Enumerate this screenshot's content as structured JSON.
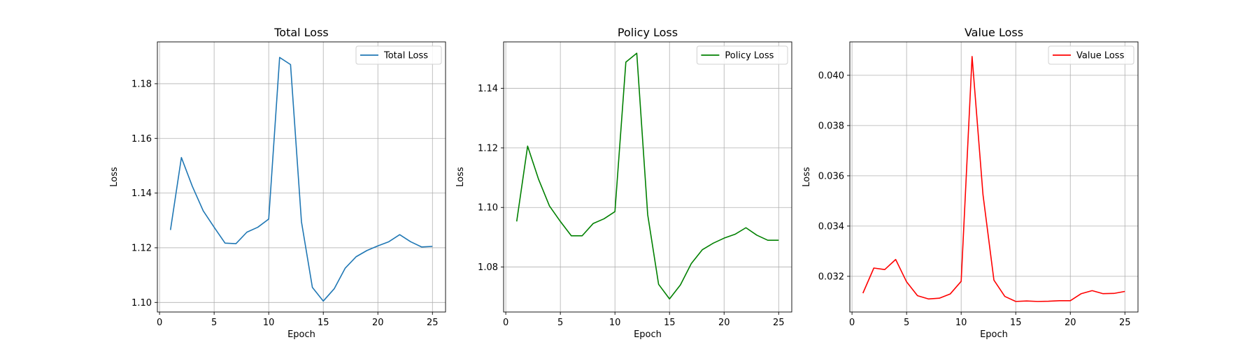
{
  "chart_data": [
    {
      "type": "line",
      "title": "Total Loss",
      "xlabel": "Epoch",
      "ylabel": "Loss",
      "xlim": [
        -0.2,
        26.2
      ],
      "ylim": [
        1.0965,
        1.1953
      ],
      "xticks": [
        0,
        5,
        10,
        15,
        20,
        25
      ],
      "yticks": [
        1.1,
        1.12,
        1.14,
        1.16,
        1.18
      ],
      "ytick_labels": [
        "1.10",
        "1.12",
        "1.14",
        "1.16",
        "1.18"
      ],
      "grid": true,
      "legend": "upper right",
      "series": [
        {
          "name": "Total Loss",
          "color": "#1f77b4",
          "x": [
            1,
            2,
            3,
            4,
            5,
            6,
            7,
            8,
            9,
            10,
            11,
            12,
            13,
            14,
            15,
            16,
            17,
            18,
            19,
            20,
            21,
            22,
            23,
            24,
            25
          ],
          "y": [
            1.1265,
            1.153,
            1.1425,
            1.1335,
            1.1275,
            1.1217,
            1.1215,
            1.1257,
            1.1275,
            1.1305,
            1.1896,
            1.187,
            1.1295,
            1.1055,
            1.1005,
            1.105,
            1.1125,
            1.1167,
            1.119,
            1.1207,
            1.1222,
            1.1248,
            1.1222,
            1.1203,
            1.1205
          ]
        }
      ]
    },
    {
      "type": "line",
      "title": "Policy Loss",
      "xlabel": "Epoch",
      "ylabel": "Loss",
      "xlim": [
        -0.2,
        26.2
      ],
      "ylim": [
        1.0649,
        1.1556
      ],
      "xticks": [
        0,
        5,
        10,
        15,
        20,
        25
      ],
      "yticks": [
        1.08,
        1.1,
        1.12,
        1.14
      ],
      "ytick_labels": [
        "1.08",
        "1.10",
        "1.12",
        "1.14"
      ],
      "grid": true,
      "legend": "upper right",
      "series": [
        {
          "name": "Policy Loss",
          "color": "#008000",
          "x": [
            1,
            2,
            3,
            4,
            5,
            6,
            7,
            8,
            9,
            10,
            11,
            12,
            13,
            14,
            15,
            16,
            17,
            18,
            19,
            20,
            21,
            22,
            23,
            24,
            25
          ],
          "y": [
            1.0953,
            1.1206,
            1.1095,
            1.1005,
            1.0953,
            1.0905,
            1.0905,
            1.0946,
            1.0962,
            1.0986,
            1.1488,
            1.1518,
            1.0976,
            1.0742,
            1.0693,
            1.074,
            1.0812,
            1.0858,
            1.088,
            1.0897,
            1.091,
            1.0932,
            1.0907,
            1.089,
            1.089
          ]
        }
      ]
    },
    {
      "type": "line",
      "title": "Value Loss",
      "xlabel": "Epoch",
      "ylabel": "Loss",
      "xlim": [
        -0.2,
        26.2
      ],
      "ylim": [
        0.03058,
        0.04133
      ],
      "xticks": [
        0,
        5,
        10,
        15,
        20,
        25
      ],
      "yticks": [
        0.032,
        0.034,
        0.036,
        0.038,
        0.04
      ],
      "ytick_labels": [
        "0.032",
        "0.034",
        "0.036",
        "0.038",
        "0.040"
      ],
      "grid": true,
      "legend": "upper right",
      "series": [
        {
          "name": "Value Loss",
          "color": "#ff0000",
          "x": [
            1,
            2,
            3,
            4,
            5,
            6,
            7,
            8,
            9,
            10,
            11,
            12,
            13,
            14,
            15,
            16,
            17,
            18,
            19,
            20,
            21,
            22,
            23,
            24,
            25
          ],
          "y": [
            0.03133,
            0.03233,
            0.03227,
            0.03267,
            0.03178,
            0.03123,
            0.0311,
            0.03113,
            0.0313,
            0.0318,
            0.04075,
            0.03525,
            0.03185,
            0.0312,
            0.031,
            0.03102,
            0.031,
            0.03101,
            0.03103,
            0.03103,
            0.03131,
            0.03143,
            0.03131,
            0.03132,
            0.0314
          ]
        }
      ]
    }
  ]
}
